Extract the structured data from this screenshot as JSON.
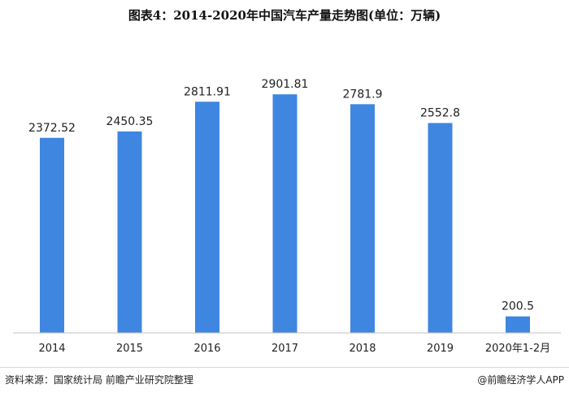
{
  "chart_data": {
    "type": "bar",
    "title": "图表4：2014-2020年中国汽车产量走势图(单位：万辆)",
    "categories": [
      "2014",
      "2015",
      "2016",
      "2017",
      "2018",
      "2019",
      "2020年1-2月"
    ],
    "values": [
      2372.52,
      2450.35,
      2811.91,
      2901.81,
      2781.9,
      2552.8,
      200.5
    ],
    "value_labels": [
      "2372.52",
      "2450.35",
      "2811.91",
      "2901.81",
      "2781.9",
      "2552.8",
      "200.5"
    ],
    "xlabel": "",
    "ylabel": "",
    "ylim": [
      0,
      3200
    ],
    "bar_color": "#3f86e0",
    "grid": false,
    "legend": "none"
  },
  "footer": {
    "source": "资料来源：国家统计局 前瞻产业研究院整理",
    "brand": "@前瞻经济学人APP"
  }
}
